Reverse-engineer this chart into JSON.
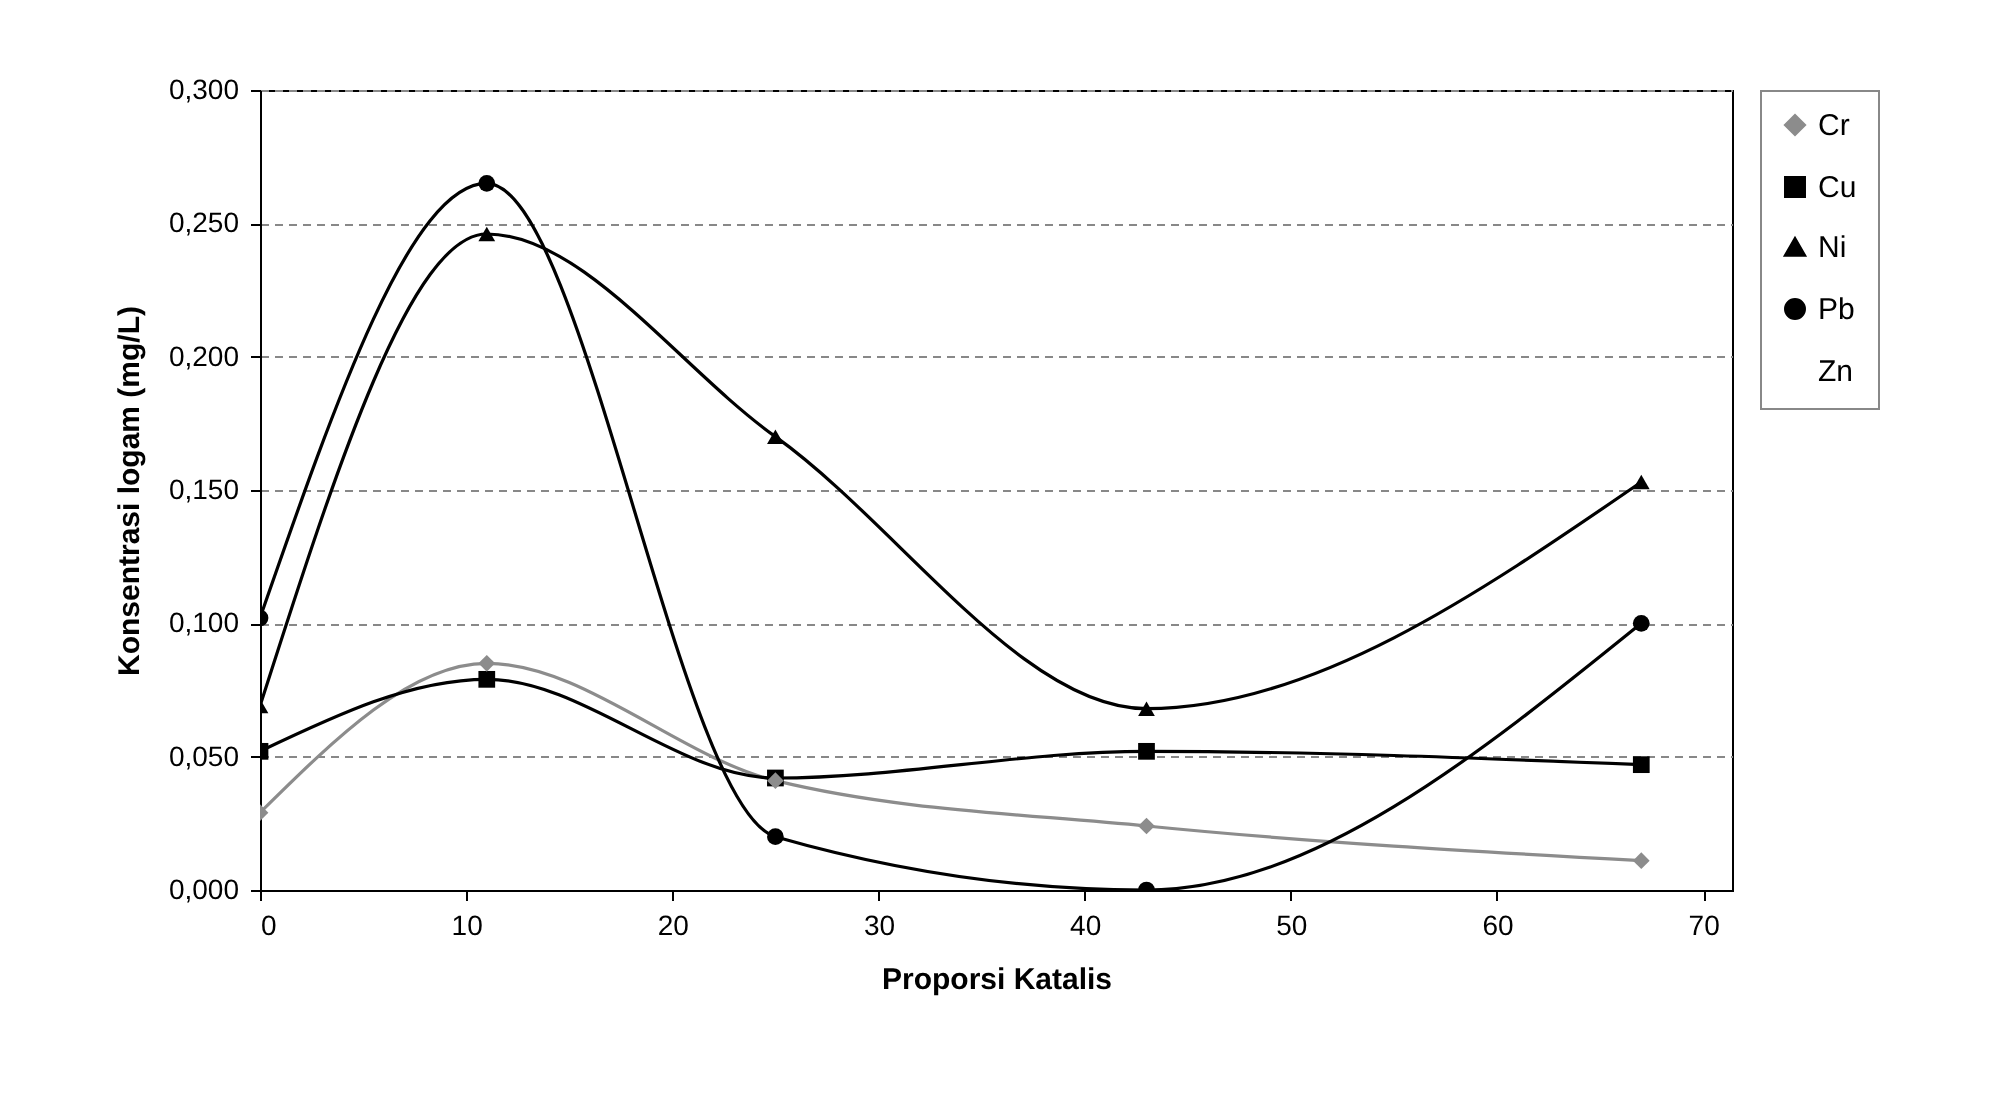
{
  "chart_data": {
    "type": "line",
    "xlabel": "Proporsi Katalis",
    "ylabel": "Konsentrasi logam (mg/L)",
    "x": [
      0,
      11,
      25,
      43,
      67
    ],
    "series": [
      {
        "name": "Cr",
        "color": "#8c8c8c",
        "marker": "diamond",
        "values": [
          0.029,
          0.085,
          0.041,
          0.024,
          0.011
        ]
      },
      {
        "name": "Cu",
        "color": "#000000",
        "marker": "square",
        "values": [
          0.052,
          0.079,
          0.042,
          0.052,
          0.047
        ]
      },
      {
        "name": "Ni",
        "color": "#000000",
        "marker": "triangle",
        "values": [
          0.069,
          0.246,
          0.17,
          0.068,
          0.153
        ]
      },
      {
        "name": "Pb",
        "color": "#000000",
        "marker": "circle",
        "values": [
          0.102,
          0.265,
          0.02,
          0.0,
          0.1
        ]
      },
      {
        "name": "Zn",
        "marker": "none",
        "values": [
          null,
          null,
          null,
          null,
          null
        ]
      }
    ],
    "xlim": [
      0,
      71.4
    ],
    "xticks": [
      0,
      10,
      20,
      30,
      40,
      50,
      60,
      70
    ],
    "ylim": [
      0,
      0.3
    ],
    "yticks": [
      {
        "value": 0,
        "label": "0,000"
      },
      {
        "value": 0.05,
        "label": "0,050"
      },
      {
        "value": 0.1,
        "label": "0,100"
      },
      {
        "value": 0.15,
        "label": "0,150"
      },
      {
        "value": 0.2,
        "label": "0,200"
      },
      {
        "value": 0.25,
        "label": "0,250"
      },
      {
        "value": 0.3,
        "label": "0,300"
      }
    ],
    "grid": "y",
    "legend": "right"
  }
}
